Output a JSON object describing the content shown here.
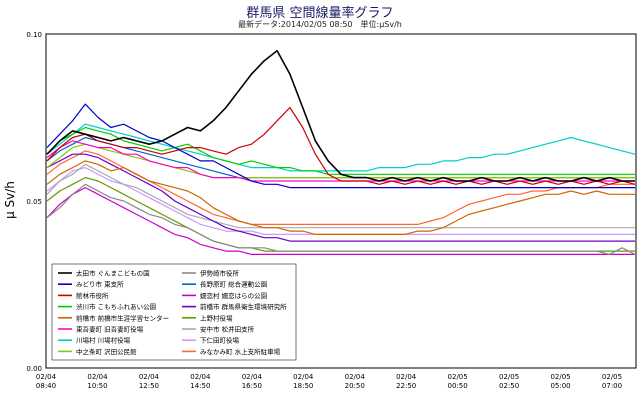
{
  "header": {
    "title": "群馬県 空間線量率グラフ",
    "subtitle": "最新データ:2014/02/05 08:50　単位:μSv/h"
  },
  "chart_data": {
    "type": "line",
    "title": "群馬県 空間線量率グラフ",
    "ylabel": "μ Sv/h",
    "xlabel": "",
    "ylim": [
      0.0,
      0.1
    ],
    "yticks": [
      "0.00",
      "0.05",
      "0.10"
    ],
    "grid": true,
    "legend_position": "bottom-left",
    "x_ticks": [
      {
        "date": "02/04",
        "time": "08:40"
      },
      {
        "date": "02/04",
        "time": "10:50"
      },
      {
        "date": "02/04",
        "time": "12:50"
      },
      {
        "date": "02/04",
        "time": "14:50"
      },
      {
        "date": "02/04",
        "time": "16:50"
      },
      {
        "date": "02/04",
        "time": "18:50"
      },
      {
        "date": "02/04",
        "time": "20:50"
      },
      {
        "date": "02/04",
        "time": "22:50"
      },
      {
        "date": "02/05",
        "time": "00:50"
      },
      {
        "date": "02/05",
        "time": "02:50"
      },
      {
        "date": "02/05",
        "time": "05:00"
      },
      {
        "date": "02/05",
        "time": "07:00"
      }
    ],
    "series": [
      {
        "name": "太田市 ぐんまこどもの国",
        "color": "#000000",
        "values": [
          0.064,
          0.068,
          0.071,
          0.07,
          0.069,
          0.068,
          0.069,
          0.068,
          0.067,
          0.068,
          0.07,
          0.072,
          0.071,
          0.074,
          0.078,
          0.083,
          0.088,
          0.092,
          0.095,
          0.088,
          0.078,
          0.068,
          0.062,
          0.058,
          0.057,
          0.057,
          0.056,
          0.057,
          0.056,
          0.057,
          0.056,
          0.057,
          0.056,
          0.056,
          0.057,
          0.056,
          0.056,
          0.057,
          0.056,
          0.057,
          0.056,
          0.056,
          0.057,
          0.056,
          0.057,
          0.056,
          0.056
        ]
      },
      {
        "name": "みどり市 東支所",
        "color": "#0000cc",
        "values": [
          0.066,
          0.07,
          0.074,
          0.079,
          0.075,
          0.072,
          0.073,
          0.071,
          0.069,
          0.068,
          0.066,
          0.064,
          0.062,
          0.062,
          0.06,
          0.058,
          0.056,
          0.055,
          0.055,
          0.054,
          0.054,
          0.054,
          0.054,
          0.054,
          0.054,
          0.054,
          0.054,
          0.054,
          0.054,
          0.054,
          0.054,
          0.054,
          0.054,
          0.054,
          0.054,
          0.054,
          0.054,
          0.054,
          0.054,
          0.054,
          0.054,
          0.054,
          0.054,
          0.054,
          0.054,
          0.054,
          0.054
        ]
      },
      {
        "name": "館林市役所",
        "color": "#cc0000",
        "values": [
          0.062,
          0.066,
          0.069,
          0.07,
          0.068,
          0.067,
          0.066,
          0.066,
          0.065,
          0.064,
          0.065,
          0.066,
          0.066,
          0.065,
          0.064,
          0.066,
          0.067,
          0.07,
          0.074,
          0.078,
          0.072,
          0.064,
          0.058,
          0.056,
          0.056,
          0.056,
          0.055,
          0.056,
          0.055,
          0.056,
          0.055,
          0.056,
          0.055,
          0.056,
          0.055,
          0.056,
          0.055,
          0.056,
          0.055,
          0.056,
          0.055,
          0.056,
          0.055,
          0.056,
          0.055,
          0.056,
          0.055
        ]
      },
      {
        "name": "渋川市 こもちふれあい公園",
        "color": "#00cc00",
        "values": [
          0.064,
          0.068,
          0.07,
          0.072,
          0.071,
          0.07,
          0.068,
          0.067,
          0.066,
          0.065,
          0.066,
          0.067,
          0.065,
          0.063,
          0.062,
          0.061,
          0.062,
          0.061,
          0.06,
          0.06,
          0.059,
          0.059,
          0.058,
          0.058,
          0.058,
          0.058,
          0.058,
          0.058,
          0.058,
          0.058,
          0.058,
          0.058,
          0.058,
          0.058,
          0.058,
          0.058,
          0.058,
          0.058,
          0.058,
          0.058,
          0.058,
          0.058,
          0.058,
          0.058,
          0.058,
          0.058,
          0.058
        ]
      },
      {
        "name": "前橋市 前橋市生涯学習センター",
        "color": "#cc6600",
        "values": [
          0.055,
          0.058,
          0.06,
          0.062,
          0.061,
          0.059,
          0.06,
          0.058,
          0.056,
          0.055,
          0.054,
          0.053,
          0.051,
          0.048,
          0.046,
          0.044,
          0.043,
          0.042,
          0.042,
          0.041,
          0.041,
          0.04,
          0.04,
          0.04,
          0.04,
          0.04,
          0.04,
          0.04,
          0.04,
          0.041,
          0.041,
          0.042,
          0.044,
          0.046,
          0.047,
          0.048,
          0.049,
          0.05,
          0.051,
          0.052,
          0.052,
          0.053,
          0.052,
          0.053,
          0.052,
          0.052,
          0.052
        ]
      },
      {
        "name": "東吾妻町 旧吾妻町役場",
        "color": "#ff00cc",
        "values": [
          0.063,
          0.066,
          0.068,
          0.067,
          0.066,
          0.066,
          0.064,
          0.064,
          0.062,
          0.061,
          0.06,
          0.06,
          0.058,
          0.057,
          0.057,
          0.057,
          0.056,
          0.056,
          0.056,
          0.056,
          0.056,
          0.056,
          0.056,
          0.056,
          0.056,
          0.056,
          0.056,
          0.056,
          0.056,
          0.056,
          0.056,
          0.056,
          0.056,
          0.056,
          0.056,
          0.056,
          0.056,
          0.056,
          0.056,
          0.056,
          0.056,
          0.056,
          0.056,
          0.056,
          0.056,
          0.056,
          0.056
        ]
      },
      {
        "name": "川場村 川場村役場",
        "color": "#00cccc",
        "values": [
          0.064,
          0.067,
          0.07,
          0.073,
          0.072,
          0.071,
          0.07,
          0.069,
          0.068,
          0.067,
          0.066,
          0.065,
          0.064,
          0.063,
          0.062,
          0.061,
          0.06,
          0.06,
          0.06,
          0.059,
          0.059,
          0.059,
          0.059,
          0.059,
          0.059,
          0.059,
          0.06,
          0.06,
          0.06,
          0.061,
          0.061,
          0.062,
          0.062,
          0.063,
          0.063,
          0.064,
          0.064,
          0.065,
          0.066,
          0.067,
          0.068,
          0.069,
          0.068,
          0.067,
          0.066,
          0.065,
          0.064
        ]
      },
      {
        "name": "中之条町 沢田公民館",
        "color": "#88cc00",
        "values": [
          0.06,
          0.063,
          0.066,
          0.067,
          0.066,
          0.065,
          0.064,
          0.063,
          0.062,
          0.061,
          0.06,
          0.059,
          0.058,
          0.057,
          0.057,
          0.057,
          0.057,
          0.057,
          0.057,
          0.057,
          0.057,
          0.057,
          0.057,
          0.057,
          0.057,
          0.057,
          0.057,
          0.057,
          0.057,
          0.057,
          0.057,
          0.057,
          0.057,
          0.057,
          0.057,
          0.057,
          0.057,
          0.057,
          0.057,
          0.057,
          0.057,
          0.057,
          0.057,
          0.057,
          0.057,
          0.057,
          0.057
        ]
      },
      {
        "name": "伊勢崎市役所",
        "color": "#888888",
        "values": [
          0.045,
          0.048,
          0.052,
          0.055,
          0.053,
          0.051,
          0.05,
          0.048,
          0.046,
          0.045,
          0.043,
          0.042,
          0.04,
          0.038,
          0.037,
          0.036,
          0.036,
          0.036,
          0.035,
          0.035,
          0.035,
          0.035,
          0.035,
          0.035,
          0.035,
          0.035,
          0.035,
          0.035,
          0.035,
          0.035,
          0.035,
          0.035,
          0.035,
          0.035,
          0.035,
          0.035,
          0.035,
          0.035,
          0.035,
          0.035,
          0.035,
          0.035,
          0.035,
          0.035,
          0.034,
          0.036,
          0.034
        ]
      },
      {
        "name": "長野原町 総合運動公園",
        "color": "#0066cc",
        "values": [
          0.062,
          0.065,
          0.067,
          0.069,
          0.068,
          0.067,
          0.066,
          0.065,
          0.064,
          0.063,
          0.062,
          0.061,
          0.06,
          0.059,
          0.058,
          0.057,
          0.057,
          0.057,
          0.057,
          0.057,
          0.057,
          0.057,
          0.057,
          0.057,
          0.057,
          0.057,
          0.057,
          0.057,
          0.057,
          0.057,
          0.057,
          0.057,
          0.057,
          0.057,
          0.057,
          0.057,
          0.057,
          0.057,
          0.057,
          0.057,
          0.057,
          0.057,
          0.057,
          0.057,
          0.057,
          0.057,
          0.057
        ]
      },
      {
        "name": "嬬恋村 嬬恋はらの公園",
        "color": "#cc00cc",
        "values": [
          0.045,
          0.049,
          0.052,
          0.054,
          0.052,
          0.05,
          0.048,
          0.046,
          0.044,
          0.042,
          0.04,
          0.039,
          0.037,
          0.036,
          0.035,
          0.035,
          0.034,
          0.034,
          0.034,
          0.034,
          0.034,
          0.034,
          0.034,
          0.034,
          0.034,
          0.034,
          0.034,
          0.034,
          0.034,
          0.034,
          0.034,
          0.034,
          0.034,
          0.034,
          0.034,
          0.034,
          0.034,
          0.034,
          0.034,
          0.034,
          0.034,
          0.034,
          0.034,
          0.034,
          0.034,
          0.034,
          0.034
        ]
      },
      {
        "name": "前橋市 群馬県衛生環境研究所",
        "color": "#6600cc",
        "values": [
          0.06,
          0.062,
          0.064,
          0.064,
          0.063,
          0.061,
          0.059,
          0.057,
          0.055,
          0.053,
          0.05,
          0.048,
          0.046,
          0.044,
          0.042,
          0.041,
          0.04,
          0.039,
          0.039,
          0.038,
          0.038,
          0.038,
          0.038,
          0.038,
          0.038,
          0.038,
          0.038,
          0.038,
          0.038,
          0.038,
          0.038,
          0.038,
          0.038,
          0.038,
          0.038,
          0.038,
          0.038,
          0.038,
          0.038,
          0.038,
          0.038,
          0.038,
          0.038,
          0.038,
          0.038,
          0.038,
          0.038
        ]
      },
      {
        "name": "上野村役場",
        "color": "#669900",
        "values": [
          0.05,
          0.053,
          0.055,
          0.057,
          0.056,
          0.054,
          0.052,
          0.05,
          0.048,
          0.046,
          0.044,
          0.042,
          0.04,
          0.038,
          0.037,
          0.036,
          0.036,
          0.035,
          0.035,
          0.035,
          0.035,
          0.035,
          0.035,
          0.035,
          0.035,
          0.035,
          0.035,
          0.035,
          0.035,
          0.035,
          0.035,
          0.035,
          0.035,
          0.035,
          0.035,
          0.035,
          0.035,
          0.035,
          0.035,
          0.035,
          0.035,
          0.035,
          0.035,
          0.035,
          0.035,
          0.035,
          0.035
        ]
      },
      {
        "name": "安中市 松井田支所",
        "color": "#aaaaaa",
        "values": [
          0.052,
          0.056,
          0.058,
          0.061,
          0.059,
          0.057,
          0.055,
          0.054,
          0.052,
          0.05,
          0.048,
          0.046,
          0.045,
          0.044,
          0.043,
          0.042,
          0.042,
          0.042,
          0.042,
          0.042,
          0.042,
          0.042,
          0.042,
          0.042,
          0.042,
          0.042,
          0.042,
          0.042,
          0.042,
          0.042,
          0.042,
          0.042,
          0.042,
          0.042,
          0.042,
          0.042,
          0.042,
          0.042,
          0.042,
          0.042,
          0.042,
          0.042,
          0.042,
          0.042,
          0.042,
          0.042,
          0.042
        ]
      },
      {
        "name": "下仁田町役場",
        "color": "#cc99ff",
        "values": [
          0.053,
          0.056,
          0.059,
          0.06,
          0.058,
          0.056,
          0.055,
          0.053,
          0.051,
          0.049,
          0.047,
          0.045,
          0.043,
          0.042,
          0.041,
          0.041,
          0.041,
          0.04,
          0.04,
          0.04,
          0.04,
          0.04,
          0.04,
          0.04,
          0.04,
          0.04,
          0.04,
          0.04,
          0.04,
          0.04,
          0.04,
          0.04,
          0.04,
          0.04,
          0.04,
          0.04,
          0.04,
          0.04,
          0.04,
          0.04,
          0.04,
          0.04,
          0.04,
          0.04,
          0.04,
          0.04,
          0.04
        ]
      },
      {
        "name": "みなかみ町 水上支所駐車場",
        "color": "#ff6633",
        "values": [
          0.058,
          0.061,
          0.063,
          0.065,
          0.064,
          0.062,
          0.06,
          0.058,
          0.056,
          0.054,
          0.052,
          0.05,
          0.048,
          0.046,
          0.045,
          0.044,
          0.043,
          0.043,
          0.043,
          0.043,
          0.043,
          0.043,
          0.043,
          0.043,
          0.043,
          0.043,
          0.043,
          0.043,
          0.043,
          0.043,
          0.044,
          0.045,
          0.047,
          0.049,
          0.05,
          0.051,
          0.052,
          0.052,
          0.053,
          0.053,
          0.054,
          0.054,
          0.054,
          0.054,
          0.055,
          0.055,
          0.055
        ]
      }
    ]
  }
}
